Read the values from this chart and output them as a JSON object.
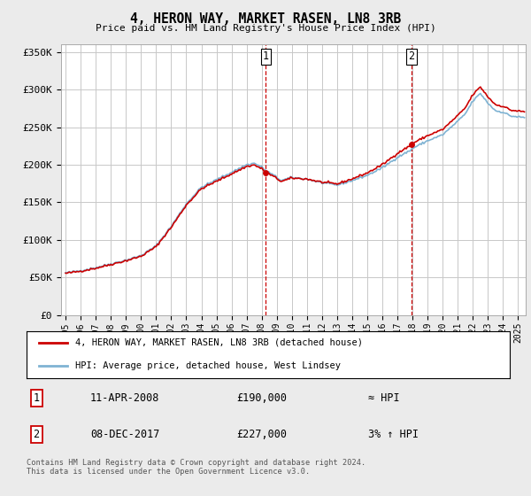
{
  "title": "4, HERON WAY, MARKET RASEN, LN8 3RB",
  "subtitle": "Price paid vs. HM Land Registry's House Price Index (HPI)",
  "ylabel_ticks": [
    "£0",
    "£50K",
    "£100K",
    "£150K",
    "£200K",
    "£250K",
    "£300K",
    "£350K"
  ],
  "ytick_values": [
    0,
    50000,
    100000,
    150000,
    200000,
    250000,
    300000,
    350000
  ],
  "ylim": [
    0,
    360000
  ],
  "xlim_start": 1994.7,
  "xlim_end": 2025.5,
  "hpi_color": "#7fb3d3",
  "price_color": "#cc0000",
  "vline_color": "#cc0000",
  "bg_color": "#ebebeb",
  "plot_bg_color": "#ffffff",
  "grid_color": "#c8c8c8",
  "legend_label_price": "4, HERON WAY, MARKET RASEN, LN8 3RB (detached house)",
  "legend_label_hpi": "HPI: Average price, detached house, West Lindsey",
  "annotation_1_label": "1",
  "annotation_1_date": "11-APR-2008",
  "annotation_1_price": "£190,000",
  "annotation_1_note": "≈ HPI",
  "annotation_2_label": "2",
  "annotation_2_date": "08-DEC-2017",
  "annotation_2_price": "£227,000",
  "annotation_2_note": "3% ↑ HPI",
  "footnote": "Contains HM Land Registry data © Crown copyright and database right 2024.\nThis data is licensed under the Open Government Licence v3.0.",
  "sale_1_x": 2008.28,
  "sale_1_y": 190000,
  "sale_2_x": 2017.93,
  "sale_2_y": 227000,
  "xtick_years": [
    1995,
    1996,
    1997,
    1998,
    1999,
    2000,
    2001,
    2002,
    2003,
    2004,
    2005,
    2006,
    2007,
    2008,
    2009,
    2010,
    2011,
    2012,
    2013,
    2014,
    2015,
    2016,
    2017,
    2018,
    2019,
    2020,
    2021,
    2022,
    2023,
    2024,
    2025
  ]
}
